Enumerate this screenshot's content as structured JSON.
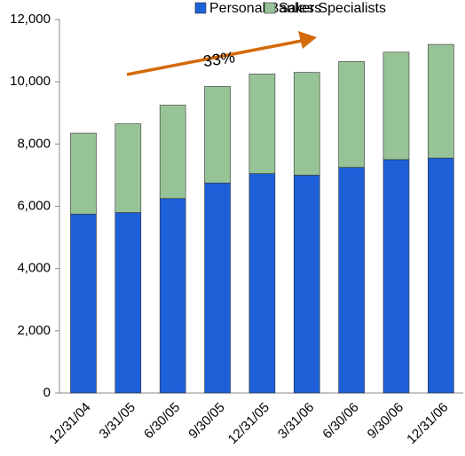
{
  "chart_data": {
    "type": "stacked-bar",
    "categories": [
      "12/31/04",
      "3/31/05",
      "6/30/05",
      "9/30/05",
      "12/31/05",
      "3/31/06",
      "6/30/06",
      "9/30/06",
      "12/31/06"
    ],
    "series": [
      {
        "name": "Personal Bankers",
        "color": "#1d60d8",
        "values": [
          5750,
          5800,
          6250,
          6750,
          7050,
          7000,
          7250,
          7500,
          7550
        ]
      },
      {
        "name": "Sales Specialists",
        "color": "#97c497",
        "values": [
          2600,
          2850,
          3000,
          3100,
          3200,
          3300,
          3400,
          3450,
          3650
        ]
      }
    ],
    "ylim": [
      0,
      12000
    ],
    "yticks": [
      0,
      {
        "value": 2000,
        "label": "2,000"
      },
      {
        "value": 4000,
        "label": "4,000"
      },
      {
        "value": 6000,
        "label": "6,000"
      },
      {
        "value": 8000,
        "label": "8,000"
      },
      {
        "value": 10000,
        "label": "10,000"
      },
      {
        "value": 12000,
        "label": "12,000"
      }
    ],
    "annotation": "33%",
    "legend": "top"
  }
}
